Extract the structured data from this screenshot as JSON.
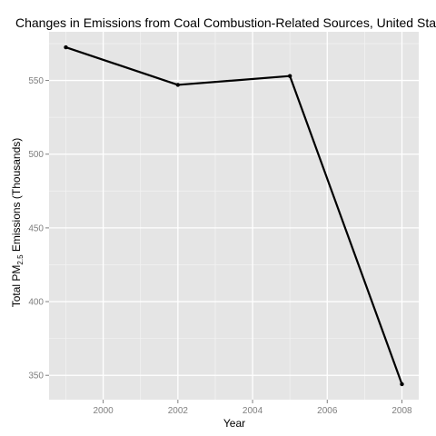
{
  "chart_data": {
    "type": "line",
    "title": "Changes in Emissions from Coal Combustion-Related Sources, United States",
    "xlabel": "Year",
    "ylabel_main": "Total PM",
    "ylabel_sub": "2.5",
    "ylabel_tail": " Emissions (Thousands)",
    "x": [
      1999,
      2002,
      2005,
      2008
    ],
    "values": [
      572.5,
      547,
      553,
      344
    ],
    "xlim": [
      1998.55,
      2008.45
    ],
    "ylim": [
      333.5,
      583
    ],
    "x_ticks": [
      2000,
      2002,
      2004,
      2006,
      2008
    ],
    "y_ticks": [
      350,
      400,
      450,
      500,
      550
    ],
    "grid": true,
    "legend": "none",
    "colors": {
      "panel": "#e5e5e5",
      "grid_major": "#ffffff",
      "grid_minor": "#f2f2f2",
      "line": "#000000",
      "tick_text": "#7f7f7f"
    }
  }
}
